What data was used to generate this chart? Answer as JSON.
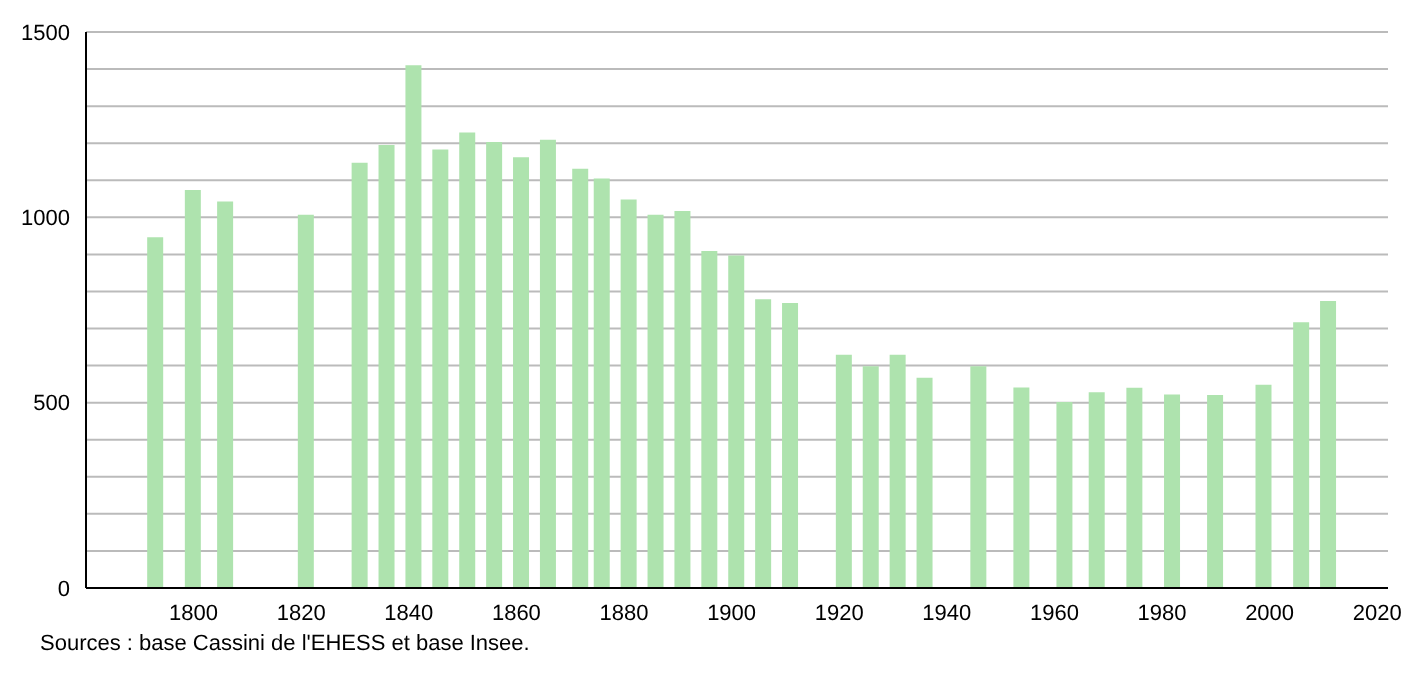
{
  "chart_data": {
    "type": "bar",
    "x": [
      1793,
      1800,
      1806,
      1821,
      1831,
      1836,
      1841,
      1846,
      1851,
      1856,
      1861,
      1866,
      1872,
      1876,
      1881,
      1886,
      1891,
      1896,
      1901,
      1906,
      1911,
      1921,
      1926,
      1931,
      1936,
      1946,
      1954,
      1962,
      1968,
      1975,
      1982,
      1990,
      1999,
      2006,
      2011
    ],
    "values": [
      946,
      1074,
      1043,
      1007,
      1147,
      1195,
      1410,
      1183,
      1229,
      1203,
      1162,
      1209,
      1131,
      1105,
      1048,
      1007,
      1017,
      909,
      897,
      779,
      769,
      629,
      598,
      629,
      567,
      598,
      541,
      502,
      528,
      540,
      522,
      521,
      548,
      717,
      774
    ],
    "color": "#aee3ae",
    "xlim": [
      1780,
      2022
    ],
    "xticks": [
      1800,
      1820,
      1840,
      1860,
      1880,
      1900,
      1920,
      1940,
      1960,
      1980,
      2000,
      2020
    ],
    "ylim": [
      0,
      1500
    ],
    "yticks": [
      0,
      {
        "value": 100,
        "label": null
      },
      {
        "value": 200,
        "label": null
      },
      {
        "value": 300,
        "label": null
      },
      {
        "value": 400,
        "label": null
      },
      500,
      {
        "value": 600,
        "label": null
      },
      {
        "value": 700,
        "label": null
      },
      {
        "value": 800,
        "label": null
      },
      {
        "value": 900,
        "label": null
      },
      1000,
      {
        "value": 1100,
        "label": null
      },
      {
        "value": 1200,
        "label": null
      },
      {
        "value": 1300,
        "label": null
      },
      {
        "value": 1400,
        "label": null
      },
      1500
    ],
    "grid": "y",
    "annotations": [
      "Sources : base Cassini de l'EHESS et base Insee."
    ]
  }
}
